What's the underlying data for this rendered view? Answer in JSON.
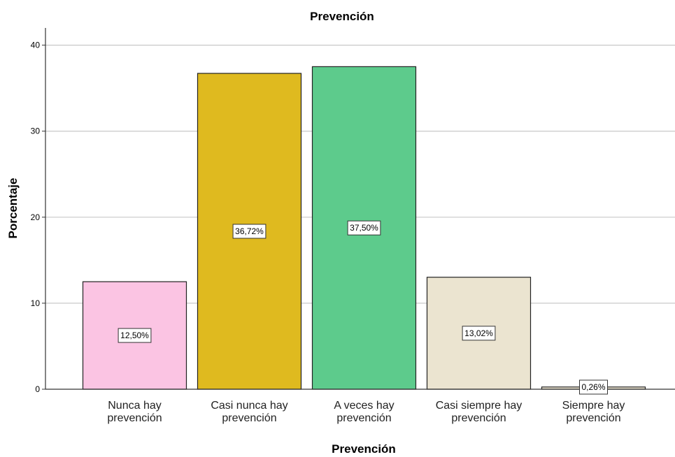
{
  "chart_data": {
    "type": "bar",
    "title": "Prevención",
    "xlabel": "Prevención",
    "ylabel": "Porcentaje",
    "ylim": [
      0,
      42
    ],
    "yticks": [
      0,
      10,
      20,
      30,
      40
    ],
    "grid": true,
    "categories": [
      [
        "Nunca hay",
        "prevención"
      ],
      [
        "Casi nunca hay",
        "prevención"
      ],
      [
        "A veces hay",
        "prevención"
      ],
      [
        "Casi siempre hay",
        "prevención"
      ],
      [
        "Siempre hay",
        "prevención"
      ]
    ],
    "values": [
      12.5,
      36.72,
      37.5,
      13.02,
      0.26
    ],
    "data_labels": [
      "12,50%",
      "36,72%",
      "37,50%",
      "13,02%",
      "0,26%"
    ],
    "colors": [
      "#fbc4e3",
      "#dfba1f",
      "#5dcb8c",
      "#ebe4d0",
      "#ebe4d0"
    ]
  }
}
